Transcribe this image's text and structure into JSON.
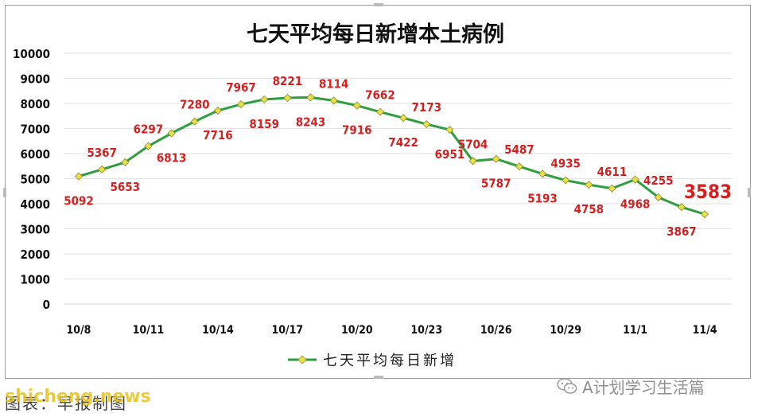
{
  "chart_data": {
    "type": "line",
    "title": "七天平均每日新增本土病例",
    "xlabel": "",
    "ylabel": "",
    "ylim": [
      0,
      10000
    ],
    "yticks": [
      0,
      1000,
      2000,
      3000,
      4000,
      5000,
      6000,
      7000,
      8000,
      9000,
      10000
    ],
    "x_tick_labels": [
      "10/8",
      "10/11",
      "10/14",
      "10/17",
      "10/20",
      "10/23",
      "10/26",
      "10/29",
      "11/1",
      "11/4"
    ],
    "grid": true,
    "legend_position": "bottom",
    "series": [
      {
        "name": "七天平均每日新增",
        "color": "#2e9e3e",
        "marker_color": "#e8e04a",
        "x": [
          "10/8",
          "10/9",
          "10/10",
          "10/11",
          "10/12",
          "10/13",
          "10/14",
          "10/15",
          "10/16",
          "10/17",
          "10/18",
          "10/19",
          "10/20",
          "10/21",
          "10/22",
          "10/23",
          "10/24",
          "10/25",
          "10/26",
          "10/27",
          "10/28",
          "10/29",
          "10/30",
          "10/31",
          "11/1",
          "11/2",
          "11/3",
          "11/4"
        ],
        "values": [
          5092,
          5367,
          5653,
          6297,
          6813,
          7280,
          7716,
          7967,
          8159,
          8221,
          8243,
          8114,
          7916,
          7662,
          7422,
          7173,
          6951,
          5704,
          5787,
          5487,
          5193,
          4935,
          4758,
          4611,
          4968,
          4255,
          3867,
          3583
        ],
        "label_color": "#d42020",
        "highlight_last": true
      }
    ]
  },
  "watermark": {
    "text": "A计划学习生活篇",
    "icon": "wechat-icon"
  },
  "footer": {
    "credit": "图表：早报制图",
    "site_logo": "shicheng.news"
  }
}
